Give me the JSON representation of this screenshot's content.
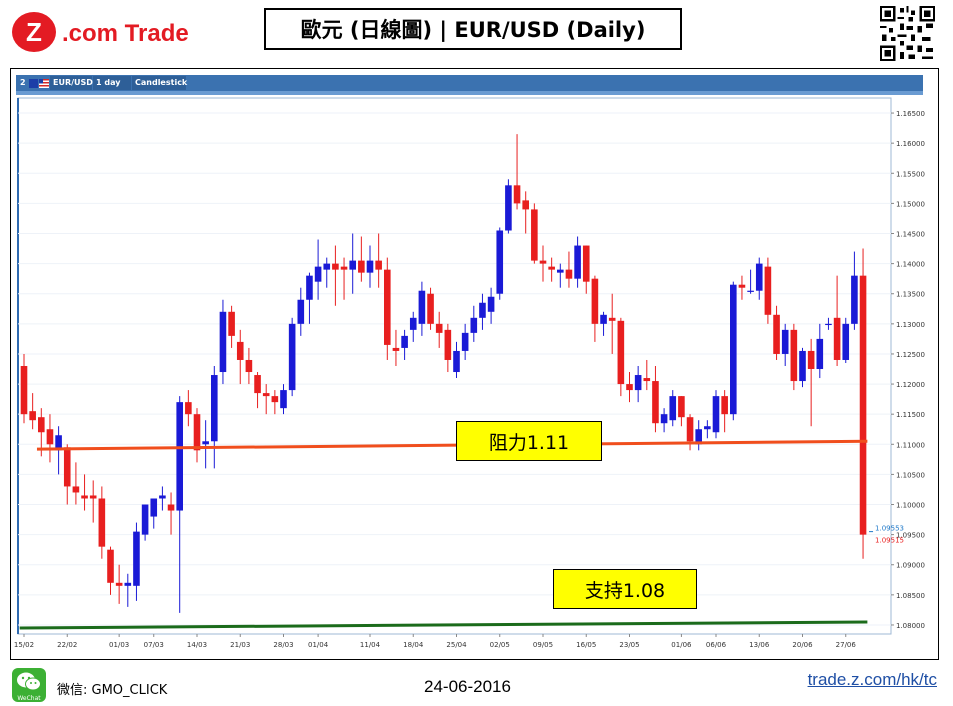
{
  "brand": {
    "logo_letter": "Z",
    "logo_text": ".com Trade"
  },
  "header": {
    "title": "歐元 (日線圖) | EUR/USD  (Daily)"
  },
  "chart_toolbar": {
    "tab_number": "2",
    "symbol": "EUR/USD",
    "interval": "1 day",
    "style": "Candlestick"
  },
  "footer": {
    "wechat_label": "WeChat",
    "wechat_id": "微信: GMO_CLICK",
    "date": "24-06-2016",
    "link": "trade.z.com/hk/tc"
  },
  "colors": {
    "bull": "#1a1ad6",
    "bear": "#e81f1f",
    "resistance_line": "#f04e1d",
    "support_line": "#1b6b1b",
    "callout_fill": "#ffff00",
    "brand_red": "#e31b23"
  },
  "chart_data": {
    "type": "candlestick",
    "title": "EUR/USD",
    "ylim": [
      1.0785,
      1.1675
    ],
    "y_ticks": [
      "1.16500",
      "1.16000",
      "1.15500",
      "1.15000",
      "1.14500",
      "1.14000",
      "1.13500",
      "1.13000",
      "1.12500",
      "1.12000",
      "1.11500",
      "1.11000",
      "1.10500",
      "1.10000",
      "1.09500",
      "1.09000",
      "1.08500",
      "1.08000"
    ],
    "x_tick_labels": [
      {
        "label": "15/02",
        "index": 0
      },
      {
        "label": "22/02",
        "index": 5
      },
      {
        "label": "01/03",
        "index": 11
      },
      {
        "label": "07/03",
        "index": 15
      },
      {
        "label": "14/03",
        "index": 20
      },
      {
        "label": "21/03",
        "index": 25
      },
      {
        "label": "28/03",
        "index": 30
      },
      {
        "label": "01/04",
        "index": 34
      },
      {
        "label": "11/04",
        "index": 40
      },
      {
        "label": "18/04",
        "index": 45
      },
      {
        "label": "25/04",
        "index": 50
      },
      {
        "label": "02/05",
        "index": 55
      },
      {
        "label": "09/05",
        "index": 60
      },
      {
        "label": "16/05",
        "index": 65
      },
      {
        "label": "23/05",
        "index": 70
      },
      {
        "label": "01/06",
        "index": 76
      },
      {
        "label": "06/06",
        "index": 80
      },
      {
        "label": "13/06",
        "index": 85
      },
      {
        "label": "20/06",
        "index": 90
      },
      {
        "label": "27/06",
        "index": 95
      }
    ],
    "candles": [
      {
        "o": 1.123,
        "h": 1.125,
        "l": 1.1135,
        "c": 1.115
      },
      {
        "o": 1.1155,
        "h": 1.1185,
        "l": 1.1125,
        "c": 1.114
      },
      {
        "o": 1.1145,
        "h": 1.116,
        "l": 1.108,
        "c": 1.112
      },
      {
        "o": 1.1125,
        "h": 1.115,
        "l": 1.107,
        "c": 1.11
      },
      {
        "o": 1.109,
        "h": 1.113,
        "l": 1.105,
        "c": 1.1115
      },
      {
        "o": 1.1095,
        "h": 1.11,
        "l": 1.1,
        "c": 1.103
      },
      {
        "o": 1.103,
        "h": 1.107,
        "l": 1.1,
        "c": 1.102
      },
      {
        "o": 1.1015,
        "h": 1.105,
        "l": 1.099,
        "c": 1.101
      },
      {
        "o": 1.1015,
        "h": 1.104,
        "l": 1.097,
        "c": 1.101
      },
      {
        "o": 1.101,
        "h": 1.103,
        "l": 1.091,
        "c": 1.093
      },
      {
        "o": 1.0925,
        "h": 1.093,
        "l": 1.085,
        "c": 1.087
      },
      {
        "o": 1.087,
        "h": 1.09,
        "l": 1.0835,
        "c": 1.0865
      },
      {
        "o": 1.0865,
        "h": 1.0885,
        "l": 1.083,
        "c": 1.087
      },
      {
        "o": 1.0865,
        "h": 1.097,
        "l": 1.084,
        "c": 1.0955
      },
      {
        "o": 1.095,
        "h": 1.1,
        "l": 1.094,
        "c": 1.1
      },
      {
        "o": 1.098,
        "h": 1.101,
        "l": 1.096,
        "c": 1.101
      },
      {
        "o": 1.101,
        "h": 1.103,
        "l": 1.099,
        "c": 1.1015
      },
      {
        "o": 1.1,
        "h": 1.102,
        "l": 1.095,
        "c": 1.099
      },
      {
        "o": 1.099,
        "h": 1.118,
        "l": 1.082,
        "c": 1.117
      },
      {
        "o": 1.117,
        "h": 1.119,
        "l": 1.113,
        "c": 1.115
      },
      {
        "o": 1.115,
        "h": 1.116,
        "l": 1.107,
        "c": 1.109
      },
      {
        "o": 1.11,
        "h": 1.114,
        "l": 1.106,
        "c": 1.1105
      },
      {
        "o": 1.1105,
        "h": 1.123,
        "l": 1.106,
        "c": 1.1215
      },
      {
        "o": 1.122,
        "h": 1.134,
        "l": 1.12,
        "c": 1.132
      },
      {
        "o": 1.132,
        "h": 1.133,
        "l": 1.126,
        "c": 1.128
      },
      {
        "o": 1.127,
        "h": 1.129,
        "l": 1.12,
        "c": 1.124
      },
      {
        "o": 1.124,
        "h": 1.126,
        "l": 1.12,
        "c": 1.122
      },
      {
        "o": 1.1215,
        "h": 1.122,
        "l": 1.116,
        "c": 1.1185
      },
      {
        "o": 1.1185,
        "h": 1.12,
        "l": 1.115,
        "c": 1.118
      },
      {
        "o": 1.118,
        "h": 1.119,
        "l": 1.115,
        "c": 1.117
      },
      {
        "o": 1.116,
        "h": 1.12,
        "l": 1.115,
        "c": 1.119
      },
      {
        "o": 1.119,
        "h": 1.131,
        "l": 1.118,
        "c": 1.13
      },
      {
        "o": 1.13,
        "h": 1.136,
        "l": 1.128,
        "c": 1.134
      },
      {
        "o": 1.134,
        "h": 1.1385,
        "l": 1.13,
        "c": 1.138
      },
      {
        "o": 1.137,
        "h": 1.144,
        "l": 1.134,
        "c": 1.1395
      },
      {
        "o": 1.139,
        "h": 1.141,
        "l": 1.136,
        "c": 1.14
      },
      {
        "o": 1.14,
        "h": 1.143,
        "l": 1.133,
        "c": 1.139
      },
      {
        "o": 1.1395,
        "h": 1.141,
        "l": 1.134,
        "c": 1.139
      },
      {
        "o": 1.139,
        "h": 1.145,
        "l": 1.135,
        "c": 1.1405
      },
      {
        "o": 1.1405,
        "h": 1.1445,
        "l": 1.137,
        "c": 1.1385
      },
      {
        "o": 1.1385,
        "h": 1.143,
        "l": 1.136,
        "c": 1.1405
      },
      {
        "o": 1.1405,
        "h": 1.145,
        "l": 1.136,
        "c": 1.139
      },
      {
        "o": 1.139,
        "h": 1.141,
        "l": 1.124,
        "c": 1.1265
      },
      {
        "o": 1.126,
        "h": 1.129,
        "l": 1.123,
        "c": 1.1255
      },
      {
        "o": 1.126,
        "h": 1.129,
        "l": 1.124,
        "c": 1.128
      },
      {
        "o": 1.129,
        "h": 1.132,
        "l": 1.127,
        "c": 1.131
      },
      {
        "o": 1.13,
        "h": 1.137,
        "l": 1.128,
        "c": 1.1355
      },
      {
        "o": 1.135,
        "h": 1.136,
        "l": 1.129,
        "c": 1.13
      },
      {
        "o": 1.13,
        "h": 1.132,
        "l": 1.126,
        "c": 1.1285
      },
      {
        "o": 1.129,
        "h": 1.13,
        "l": 1.122,
        "c": 1.124
      },
      {
        "o": 1.122,
        "h": 1.127,
        "l": 1.121,
        "c": 1.1255
      },
      {
        "o": 1.1255,
        "h": 1.13,
        "l": 1.124,
        "c": 1.1285
      },
      {
        "o": 1.1285,
        "h": 1.133,
        "l": 1.127,
        "c": 1.131
      },
      {
        "o": 1.131,
        "h": 1.135,
        "l": 1.129,
        "c": 1.1335
      },
      {
        "o": 1.132,
        "h": 1.136,
        "l": 1.13,
        "c": 1.1345
      },
      {
        "o": 1.135,
        "h": 1.146,
        "l": 1.134,
        "c": 1.1455
      },
      {
        "o": 1.1455,
        "h": 1.154,
        "l": 1.145,
        "c": 1.153
      },
      {
        "o": 1.153,
        "h": 1.1615,
        "l": 1.149,
        "c": 1.15
      },
      {
        "o": 1.1505,
        "h": 1.152,
        "l": 1.145,
        "c": 1.149
      },
      {
        "o": 1.149,
        "h": 1.15,
        "l": 1.14,
        "c": 1.1405
      },
      {
        "o": 1.1405,
        "h": 1.143,
        "l": 1.137,
        "c": 1.14
      },
      {
        "o": 1.1395,
        "h": 1.141,
        "l": 1.137,
        "c": 1.139
      },
      {
        "o": 1.1385,
        "h": 1.14,
        "l": 1.136,
        "c": 1.139
      },
      {
        "o": 1.139,
        "h": 1.142,
        "l": 1.136,
        "c": 1.1375
      },
      {
        "o": 1.1375,
        "h": 1.1445,
        "l": 1.136,
        "c": 1.143
      },
      {
        "o": 1.143,
        "h": 1.143,
        "l": 1.135,
        "c": 1.137
      },
      {
        "o": 1.1375,
        "h": 1.138,
        "l": 1.127,
        "c": 1.13
      },
      {
        "o": 1.13,
        "h": 1.132,
        "l": 1.128,
        "c": 1.1315
      },
      {
        "o": 1.131,
        "h": 1.135,
        "l": 1.125,
        "c": 1.1305
      },
      {
        "o": 1.1305,
        "h": 1.131,
        "l": 1.118,
        "c": 1.12
      },
      {
        "o": 1.12,
        "h": 1.122,
        "l": 1.117,
        "c": 1.119
      },
      {
        "o": 1.119,
        "h": 1.123,
        "l": 1.117,
        "c": 1.1215
      },
      {
        "o": 1.121,
        "h": 1.124,
        "l": 1.119,
        "c": 1.1205
      },
      {
        "o": 1.1205,
        "h": 1.123,
        "l": 1.112,
        "c": 1.1135
      },
      {
        "o": 1.1135,
        "h": 1.116,
        "l": 1.112,
        "c": 1.115
      },
      {
        "o": 1.114,
        "h": 1.119,
        "l": 1.113,
        "c": 1.118
      },
      {
        "o": 1.118,
        "h": 1.118,
        "l": 1.113,
        "c": 1.1145
      },
      {
        "o": 1.1145,
        "h": 1.115,
        "l": 1.109,
        "c": 1.1105
      },
      {
        "o": 1.11,
        "h": 1.114,
        "l": 1.109,
        "c": 1.1125
      },
      {
        "o": 1.1125,
        "h": 1.114,
        "l": 1.111,
        "c": 1.113
      },
      {
        "o": 1.112,
        "h": 1.119,
        "l": 1.111,
        "c": 1.118
      },
      {
        "o": 1.118,
        "h": 1.119,
        "l": 1.112,
        "c": 1.115
      },
      {
        "o": 1.115,
        "h": 1.137,
        "l": 1.114,
        "c": 1.1365
      },
      {
        "o": 1.1365,
        "h": 1.138,
        "l": 1.134,
        "c": 1.136
      },
      {
        "o": 1.1355,
        "h": 1.139,
        "l": 1.135,
        "c": 1.1355
      },
      {
        "o": 1.1355,
        "h": 1.141,
        "l": 1.134,
        "c": 1.14
      },
      {
        "o": 1.1395,
        "h": 1.141,
        "l": 1.13,
        "c": 1.1315
      },
      {
        "o": 1.1315,
        "h": 1.133,
        "l": 1.124,
        "c": 1.125
      },
      {
        "o": 1.125,
        "h": 1.13,
        "l": 1.123,
        "c": 1.129
      },
      {
        "o": 1.129,
        "h": 1.13,
        "l": 1.119,
        "c": 1.1205
      },
      {
        "o": 1.1205,
        "h": 1.126,
        "l": 1.1195,
        "c": 1.1255
      },
      {
        "o": 1.1255,
        "h": 1.1275,
        "l": 1.113,
        "c": 1.1225
      },
      {
        "o": 1.1225,
        "h": 1.13,
        "l": 1.121,
        "c": 1.1275
      },
      {
        "o": 1.13,
        "h": 1.131,
        "l": 1.129,
        "c": 1.13
      },
      {
        "o": 1.131,
        "h": 1.138,
        "l": 1.123,
        "c": 1.124
      },
      {
        "o": 1.124,
        "h": 1.131,
        "l": 1.1235,
        "c": 1.13
      },
      {
        "o": 1.13,
        "h": 1.142,
        "l": 1.129,
        "c": 1.138
      },
      {
        "o": 1.138,
        "h": 1.1425,
        "l": 1.091,
        "c": 1.095
      }
    ],
    "price_labels": [
      {
        "value": "1.09553",
        "color": "#1e78c8"
      },
      {
        "value": "1.09515",
        "color": "#e81f1f"
      }
    ],
    "trendlines": [
      {
        "name": "resistance",
        "from": {
          "index": 1.5,
          "price": 1.1092
        },
        "to": {
          "index": 97.5,
          "price": 1.1105
        }
      },
      {
        "name": "support",
        "from": {
          "index": -0.5,
          "price": 1.0795
        },
        "to": {
          "index": 97.5,
          "price": 1.0805
        }
      }
    ],
    "annotations": [
      {
        "text": "阻力1.11",
        "index": 60,
        "price": 1.1105
      },
      {
        "text": "支持1.08",
        "index": 71,
        "price": 1.0875
      }
    ],
    "grid": true
  }
}
